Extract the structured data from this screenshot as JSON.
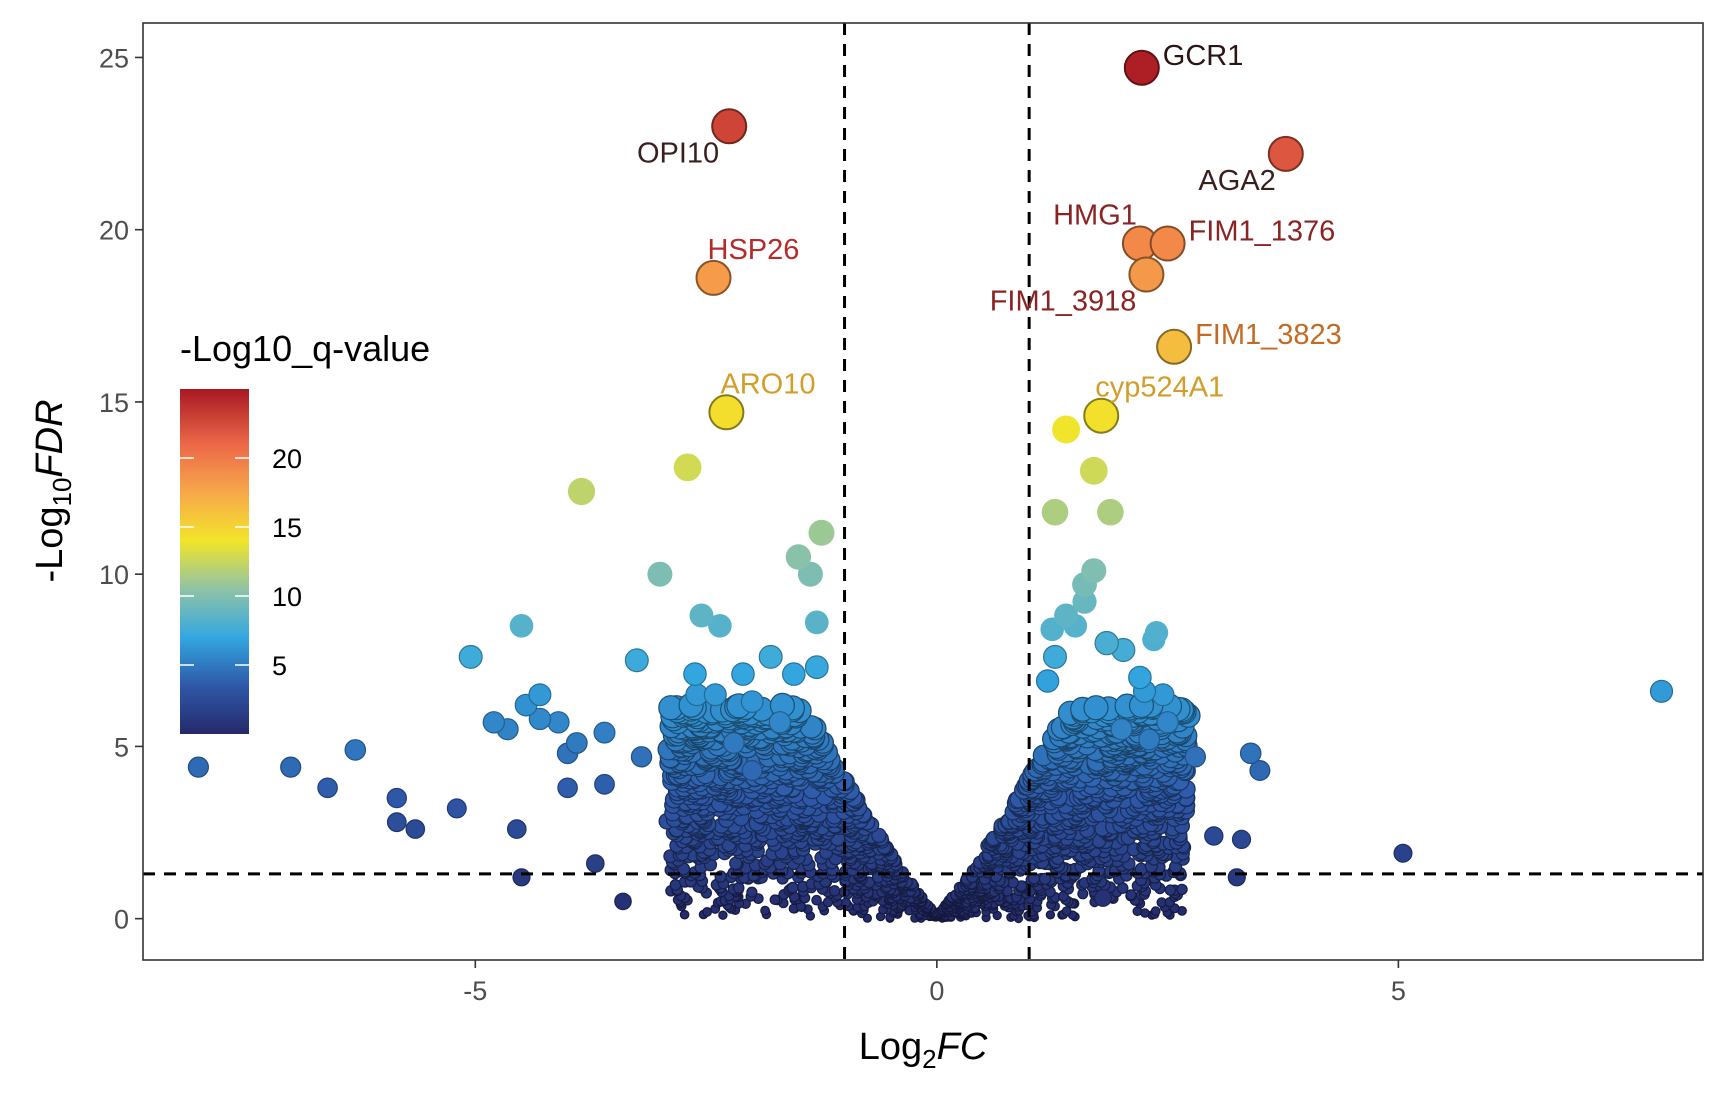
{
  "chart_data": {
    "type": "scatter",
    "title": "",
    "xlabel": {
      "base": "Log",
      "sub": "2",
      "italic": "FC"
    },
    "ylabel": {
      "base": "-Log",
      "sub": "10",
      "italic": "FDR"
    },
    "xlim": [
      -8.6,
      8.3
    ],
    "ylim": [
      -1.2,
      26.0
    ],
    "x_ticks": [
      -5,
      0,
      5
    ],
    "x_tick_labels": [
      "-5",
      "0",
      "5"
    ],
    "y_ticks": [
      0,
      5,
      10,
      15,
      20,
      25
    ],
    "y_tick_labels": [
      "0",
      "5",
      "10",
      "15",
      "20",
      "25"
    ],
    "grid": false,
    "thresholds": {
      "log2fc": [
        -1,
        1
      ],
      "neglog10_fdr": 1.3
    },
    "legend": {
      "title": "-Log10_q-value",
      "placement": "left",
      "min": 0,
      "max": 25,
      "ticks": [
        5,
        10,
        15,
        20
      ],
      "tick_labels": [
        "5",
        "10",
        "15",
        "20"
      ]
    },
    "color_scale": [
      "#252a6b",
      "#2e58a8",
      "#33a7e0",
      "#8fc3a6",
      "#f2e52a",
      "#f7a84a",
      "#ec6848",
      "#a81822"
    ],
    "labeled_points": [
      {
        "label": "GCR1",
        "x": 2.22,
        "y": 24.7,
        "q": 24.7,
        "color": "#2b1414",
        "anchor": "right"
      },
      {
        "label": "OPI10",
        "x": -2.25,
        "y": 23.0,
        "q": 23.0,
        "color": "#3a1f1f",
        "anchor": "below-left"
      },
      {
        "label": "AGA2",
        "x": 3.78,
        "y": 22.2,
        "q": 22.2,
        "color": "#3a1f1f",
        "anchor": "below-left"
      },
      {
        "label": "HMG1",
        "x": 2.2,
        "y": 19.6,
        "q": 19.6,
        "color": "#8a2424",
        "anchor": "above-left"
      },
      {
        "label": "FIM1_1376",
        "x": 2.5,
        "y": 19.6,
        "q": 19.6,
        "color": "#8a2424",
        "anchor": "right"
      },
      {
        "label": "HSP26",
        "x": -2.42,
        "y": 18.6,
        "q": 18.6,
        "color": "#b52b2b",
        "anchor": "above-right"
      },
      {
        "label": "FIM1_3918",
        "x": 2.27,
        "y": 18.7,
        "q": 18.7,
        "color": "#8a2424",
        "anchor": "below-left"
      },
      {
        "label": "FIM1_3823",
        "x": 2.57,
        "y": 16.6,
        "q": 16.6,
        "color": "#c46a22",
        "anchor": "right"
      },
      {
        "label": "ARO10",
        "x": -2.28,
        "y": 14.7,
        "q": 14.7,
        "color": "#d39d2a",
        "anchor": "above-right"
      },
      {
        "label": "cyp524A1",
        "x": 1.78,
        "y": 14.6,
        "q": 14.6,
        "color": "#d39d2a",
        "anchor": "above-right"
      }
    ],
    "points_large": [
      [
        1.4,
        14.2
      ],
      [
        1.7,
        13.0
      ],
      [
        -2.7,
        13.1
      ],
      [
        -3.85,
        12.4
      ],
      [
        1.28,
        11.8
      ],
      [
        1.88,
        11.8
      ],
      [
        -1.25,
        11.2
      ],
      [
        -1.5,
        10.5
      ],
      [
        -1.37,
        10.0
      ],
      [
        -3.0,
        10.0
      ],
      [
        1.7,
        10.1
      ],
      [
        1.6,
        9.7
      ],
      [
        1.6,
        9.2
      ],
      [
        1.4,
        8.8
      ],
      [
        -2.55,
        8.8
      ],
      [
        -2.35,
        8.5
      ],
      [
        -4.5,
        8.5
      ],
      [
        -1.3,
        8.6
      ],
      [
        1.5,
        8.5
      ],
      [
        1.25,
        8.4
      ],
      [
        2.38,
        8.3
      ],
      [
        2.35,
        8.1
      ],
      [
        1.84,
        8.0
      ],
      [
        2.02,
        7.8
      ],
      [
        1.28,
        7.6
      ],
      [
        -5.05,
        7.6
      ],
      [
        -3.25,
        7.5
      ],
      [
        -1.8,
        7.6
      ],
      [
        -1.55,
        7.1
      ],
      [
        -2.1,
        7.1
      ],
      [
        -2.62,
        7.1
      ],
      [
        -1.3,
        7.3
      ],
      [
        1.2,
        6.9
      ],
      [
        2.2,
        7.0
      ],
      [
        -4.3,
        6.5
      ],
      [
        -4.45,
        6.2
      ],
      [
        -2.6,
        6.5
      ],
      [
        -2.4,
        6.5
      ],
      [
        -2.0,
        6.3
      ],
      [
        2.45,
        6.5
      ],
      [
        7.85,
        6.6
      ],
      [
        2.25,
        6.6
      ],
      [
        -4.8,
        5.7
      ],
      [
        -4.65,
        5.5
      ],
      [
        -4.3,
        5.8
      ],
      [
        -4.1,
        5.7
      ],
      [
        -3.9,
        5.1
      ],
      [
        -3.6,
        5.4
      ],
      [
        -4.0,
        4.8
      ],
      [
        -2.2,
        5.1
      ],
      [
        -1.7,
        5.7
      ],
      [
        2.5,
        5.7
      ],
      [
        2.3,
        5.2
      ],
      [
        2.0,
        5.5
      ],
      [
        -8.0,
        4.4
      ],
      [
        -7.0,
        4.4
      ],
      [
        -6.3,
        4.9
      ],
      [
        -6.6,
        3.8
      ],
      [
        -5.85,
        3.5
      ],
      [
        -5.2,
        3.2
      ],
      [
        -5.85,
        2.8
      ],
      [
        -5.65,
        2.6
      ],
      [
        -4.55,
        2.6
      ],
      [
        -4.0,
        3.8
      ],
      [
        -3.6,
        3.9
      ],
      [
        -3.2,
        4.7
      ],
      [
        -2.0,
        4.3
      ],
      [
        3.4,
        4.8
      ],
      [
        3.5,
        4.3
      ],
      [
        2.8,
        4.7
      ],
      [
        3.0,
        2.4
      ],
      [
        3.3,
        2.3
      ],
      [
        5.05,
        1.9
      ],
      [
        -3.7,
        1.6
      ],
      [
        3.25,
        1.2
      ],
      [
        -4.5,
        1.2
      ],
      [
        1.8,
        0.6
      ],
      [
        -3.4,
        0.5
      ]
    ]
  }
}
